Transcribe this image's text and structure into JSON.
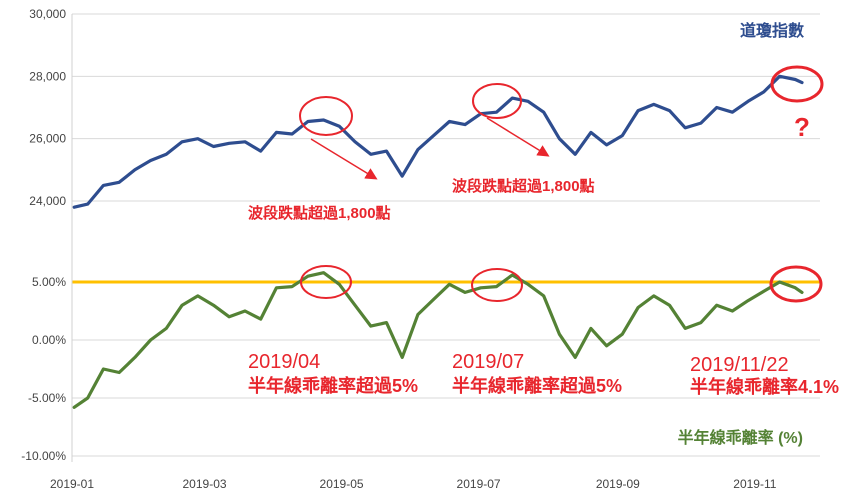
{
  "chart_data": [
    {
      "type": "line",
      "title": "道瓊指數",
      "legend": "top-right",
      "grid": true,
      "ylim": [
        24000,
        30000
      ],
      "yticks": [
        "24,000",
        "26,000",
        "28,000",
        "30,000"
      ],
      "ytick_values": [
        24000,
        26000,
        28000,
        30000
      ],
      "series": [
        {
          "name": "道瓊指數",
          "color": "#2e4d8f",
          "x": [
            "2019-01-02",
            "2019-01-08",
            "2019-01-15",
            "2019-01-22",
            "2019-01-29",
            "2019-02-05",
            "2019-02-12",
            "2019-02-19",
            "2019-02-26",
            "2019-03-05",
            "2019-03-12",
            "2019-03-19",
            "2019-03-26",
            "2019-04-02",
            "2019-04-09",
            "2019-04-16",
            "2019-04-23",
            "2019-04-30",
            "2019-05-07",
            "2019-05-14",
            "2019-05-21",
            "2019-05-28",
            "2019-06-04",
            "2019-06-11",
            "2019-06-18",
            "2019-06-25",
            "2019-07-02",
            "2019-07-09",
            "2019-07-16",
            "2019-07-23",
            "2019-07-30",
            "2019-08-06",
            "2019-08-13",
            "2019-08-20",
            "2019-08-27",
            "2019-09-03",
            "2019-09-10",
            "2019-09-17",
            "2019-09-24",
            "2019-10-01",
            "2019-10-08",
            "2019-10-15",
            "2019-10-22",
            "2019-10-29",
            "2019-11-05",
            "2019-11-12",
            "2019-11-19",
            "2019-11-22"
          ],
          "values": [
            23800,
            23900,
            24500,
            24600,
            25000,
            25300,
            25500,
            25900,
            26000,
            25750,
            25850,
            25900,
            25600,
            26200,
            26150,
            26550,
            26600,
            26400,
            25900,
            25500,
            25600,
            24800,
            25650,
            26100,
            26550,
            26450,
            26800,
            26850,
            27300,
            27200,
            26850,
            26000,
            25500,
            26200,
            25800,
            26100,
            26900,
            27100,
            26900,
            26350,
            26500,
            27000,
            26850,
            27200,
            27500,
            28000,
            27900,
            27800
          ]
        }
      ]
    },
    {
      "type": "line",
      "title": "半年線乖離率 (%)",
      "legend": "bottom-right",
      "grid": true,
      "ylim": [
        -10,
        10
      ],
      "yticks": [
        "-10.00%",
        "-5.00%",
        "0.00%",
        "5.00%"
      ],
      "ytick_values": [
        -10,
        -5,
        0,
        5
      ],
      "threshold": 5,
      "threshold_color": "#ffc000",
      "series": [
        {
          "name": "半年線乖離率 (%)",
          "color": "#548235",
          "x": [
            "2019-01-02",
            "2019-01-08",
            "2019-01-15",
            "2019-01-22",
            "2019-01-29",
            "2019-02-05",
            "2019-02-12",
            "2019-02-19",
            "2019-02-26",
            "2019-03-05",
            "2019-03-12",
            "2019-03-19",
            "2019-03-26",
            "2019-04-02",
            "2019-04-09",
            "2019-04-16",
            "2019-04-23",
            "2019-04-30",
            "2019-05-07",
            "2019-05-14",
            "2019-05-21",
            "2019-05-28",
            "2019-06-04",
            "2019-06-11",
            "2019-06-18",
            "2019-06-25",
            "2019-07-02",
            "2019-07-09",
            "2019-07-16",
            "2019-07-23",
            "2019-07-30",
            "2019-08-06",
            "2019-08-13",
            "2019-08-20",
            "2019-08-27",
            "2019-09-03",
            "2019-09-10",
            "2019-09-17",
            "2019-09-24",
            "2019-10-01",
            "2019-10-08",
            "2019-10-15",
            "2019-10-22",
            "2019-10-29",
            "2019-11-05",
            "2019-11-12",
            "2019-11-19",
            "2019-11-22"
          ],
          "values": [
            -5.8,
            -5.0,
            -2.5,
            -2.8,
            -1.5,
            0.0,
            1.0,
            3.0,
            3.8,
            3.0,
            2.0,
            2.5,
            1.8,
            4.5,
            4.6,
            5.5,
            5.8,
            4.8,
            3.0,
            1.2,
            1.5,
            -1.5,
            2.2,
            3.5,
            4.8,
            4.1,
            4.5,
            4.6,
            5.6,
            4.8,
            3.8,
            0.5,
            -1.5,
            1.0,
            -0.5,
            0.5,
            2.8,
            3.8,
            3.0,
            1.0,
            1.5,
            3.0,
            2.5,
            3.4,
            4.2,
            5.0,
            4.5,
            4.1
          ]
        }
      ]
    },
    {
      "type": "line",
      "xticks": [
        "2019-01",
        "2019-03",
        "2019-05",
        "2019-07",
        "2019-09",
        "2019-11"
      ]
    }
  ],
  "annotations": {
    "drop_label_1": "波段跌點超過1,800點",
    "drop_label_2": "波段跌點超過1,800點",
    "date_label_1": "2019/04",
    "note_label_1": "半年線乖離率超過5%",
    "date_label_2": "2019/07",
    "note_label_2": "半年線乖離率超過5%",
    "date_label_3": "2019/11/22",
    "note_label_3": "半年線乖離率4.1%",
    "question_mark": "?",
    "red_color": "#e8262d"
  }
}
